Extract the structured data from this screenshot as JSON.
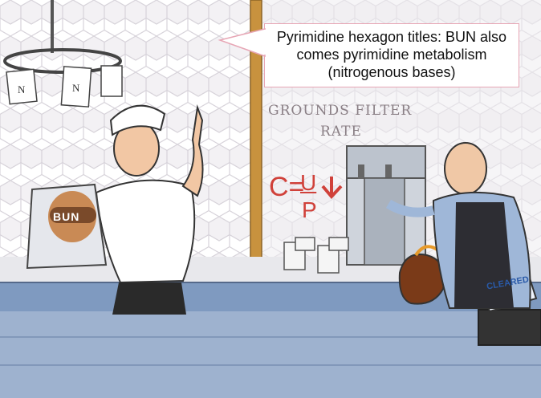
{
  "callout": {
    "text": "Pyrimidine hexagon titles: BUN also comes pyrimidine metabolism (nitrogenous bases)"
  },
  "wall_sign": {
    "line1": "GROUNDS FILTER",
    "line2": "RATE"
  },
  "equation": {
    "left": "C=",
    "numerator": "U",
    "denominator": "P"
  },
  "bag_label": "BUN",
  "register_label": "CLEARED",
  "order_tickets": [
    "N",
    "N"
  ],
  "colors": {
    "accent_red": "#d0413a",
    "callout_border": "#e7a6b5",
    "counter_blue": "#7f9ac0"
  }
}
